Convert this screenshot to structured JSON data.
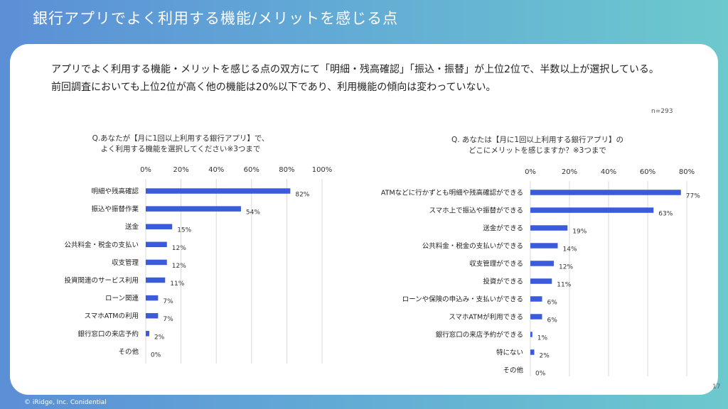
{
  "title": "銀行アプリでよく利用する機能/メリットを感じる点",
  "summary": "アプリでよく利用する機能・メリットを感じる点の双方にて「明細・残高確認」「振込・振替」が上位2位で、半数以上が選択している。前回調査においても上位2位が高く他の機能は20%以下であり、利用機能の傾向は変わっていない。",
  "sample_size": "n=293",
  "footer": "© iRidge, Inc. Conidential",
  "page_number": "17",
  "colors": {
    "bar": "#3a5bdc",
    "grid": "#d9d9d9"
  },
  "chart_data": [
    {
      "type": "bar",
      "orientation": "horizontal",
      "title_lines": [
        "Q.あなたが【月に1回以上利用する銀行アプリ】で、",
        "よく利用する機能を選択してください※3つまで"
      ],
      "xlim": [
        0,
        100
      ],
      "ticks": [
        0,
        20,
        40,
        60,
        80,
        100
      ],
      "tick_labels": [
        "0%",
        "20%",
        "40%",
        "60%",
        "80%",
        "100%"
      ],
      "categories": [
        "明細や残高確認",
        "振込や振替作業",
        "送金",
        "公共料金・税金の支払い",
        "収支管理",
        "投資関連のサービス利用",
        "ローン関連",
        "スマホATMの利用",
        "銀行窓口の来店予約",
        "その他"
      ],
      "values": [
        82,
        54,
        15,
        12,
        12,
        11,
        7,
        7,
        2,
        0
      ],
      "value_labels": [
        "82%",
        "54%",
        "15%",
        "12%",
        "12%",
        "11%",
        "7%",
        "7%",
        "2%",
        "0%"
      ]
    },
    {
      "type": "bar",
      "orientation": "horizontal",
      "title_lines": [
        "Q. あなたは【月に1回以上利用する銀行アプリ】の",
        "どこにメリットを感じますか？※3つまで"
      ],
      "xlim": [
        0,
        80
      ],
      "ticks": [
        0,
        20,
        40,
        60,
        80
      ],
      "tick_labels": [
        "0%",
        "20%",
        "40%",
        "60%",
        "80%"
      ],
      "categories": [
        "ATMなどに行かずとも明細や残高確認ができる",
        "スマホ上で振込や振替ができる",
        "送金ができる",
        "公共料金・税金の支払いができる",
        "収支管理ができる",
        "投資ができる",
        "ローンや保険の申込み・支払いができる",
        "スマホATMが利用できる",
        "銀行窓口の来店予約ができる",
        "特にない",
        "その他"
      ],
      "values": [
        77,
        63,
        19,
        14,
        12,
        11,
        6,
        6,
        1,
        2,
        0
      ],
      "value_labels": [
        "77%",
        "63%",
        "19%",
        "14%",
        "12%",
        "11%",
        "6%",
        "6%",
        "1%",
        "2%",
        "0%"
      ]
    }
  ]
}
